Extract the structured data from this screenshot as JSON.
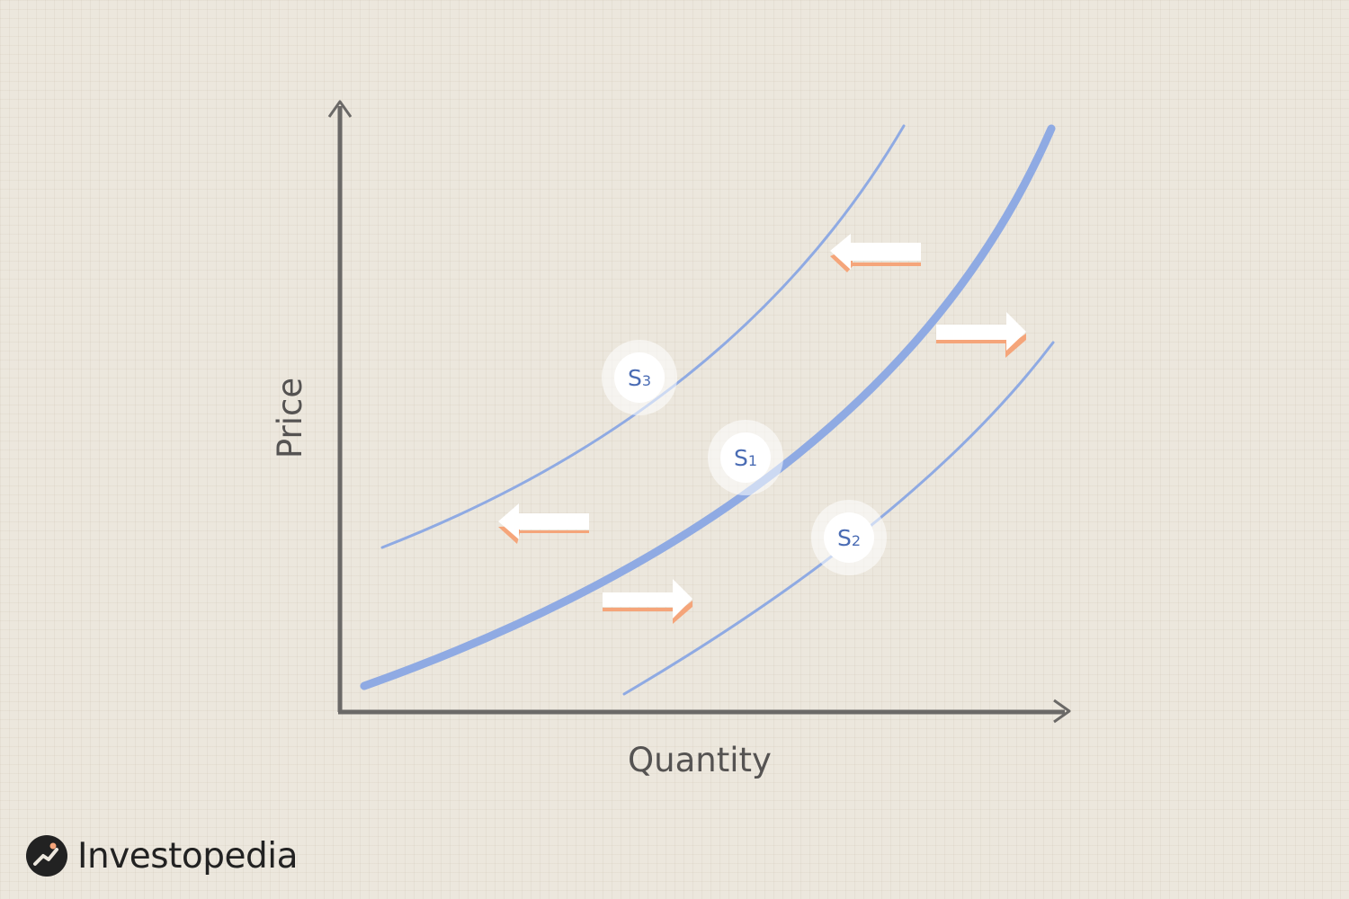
{
  "diagram": {
    "type": "supply-curve-shift",
    "x_axis_label": "Quantity",
    "y_axis_label": "Price",
    "curves": [
      {
        "id": "s1",
        "label": "S",
        "subscript": "1",
        "emphasis": "primary"
      },
      {
        "id": "s2",
        "label": "S",
        "subscript": "2",
        "emphasis": "secondary"
      },
      {
        "id": "s3",
        "label": "S",
        "subscript": "3",
        "emphasis": "secondary"
      }
    ],
    "shift_arrows": [
      {
        "id": "upper-left",
        "direction": "left"
      },
      {
        "id": "lower-left",
        "direction": "left"
      },
      {
        "id": "upper-right",
        "direction": "right"
      },
      {
        "id": "lower-right",
        "direction": "right"
      }
    ],
    "colors": {
      "curve": "#8faae3",
      "label_text": "#4a6cb4",
      "axis": "#6b6967",
      "axis_label": "#555352",
      "arrow_fill": "#ffffff",
      "arrow_shadow": "#f5a57a",
      "background": "#ece7dd"
    }
  },
  "brand": {
    "name": "Investopedia",
    "icon": "investopedia-logo-icon"
  }
}
